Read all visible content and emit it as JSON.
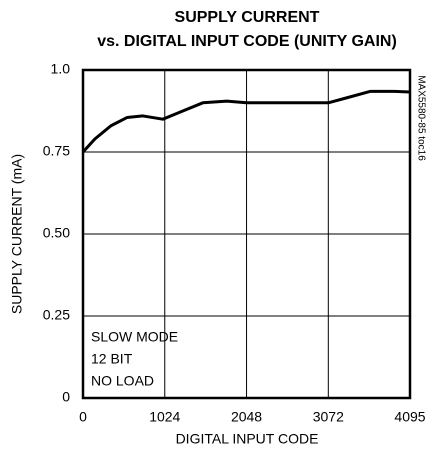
{
  "chart_data": {
    "type": "line",
    "title": [
      "SUPPLY CURRENT",
      "vs. DIGITAL INPUT CODE (UNITY GAIN)"
    ],
    "xlabel": "DIGITAL INPUT CODE",
    "ylabel": "SUPPLY CURRENT (mA)",
    "annotations": [
      "SLOW MODE",
      "12 BIT",
      "NO LOAD"
    ],
    "side_note": "MAX5580-85 toc16",
    "x": [
      0,
      150,
      350,
      550,
      750,
      1000,
      1200,
      1500,
      1800,
      2048,
      2500,
      3072,
      3300,
      3600,
      3900,
      4095
    ],
    "series": [
      {
        "color": "#000000",
        "values": [
          0.75,
          0.79,
          0.83,
          0.855,
          0.86,
          0.85,
          0.87,
          0.9,
          0.905,
          0.9,
          0.9,
          0.9,
          0.915,
          0.935,
          0.935,
          0.933
        ]
      }
    ],
    "xlim": [
      0,
      4095
    ],
    "xticks": [
      0,
      1024,
      2048,
      3072,
      4095
    ],
    "ylim": [
      0,
      1
    ],
    "yticks": [
      0,
      0.25,
      {
        "value": 0.5,
        "label": "0.50"
      },
      0.75,
      {
        "value": 1,
        "label": "1.0"
      }
    ],
    "grid": true
  }
}
